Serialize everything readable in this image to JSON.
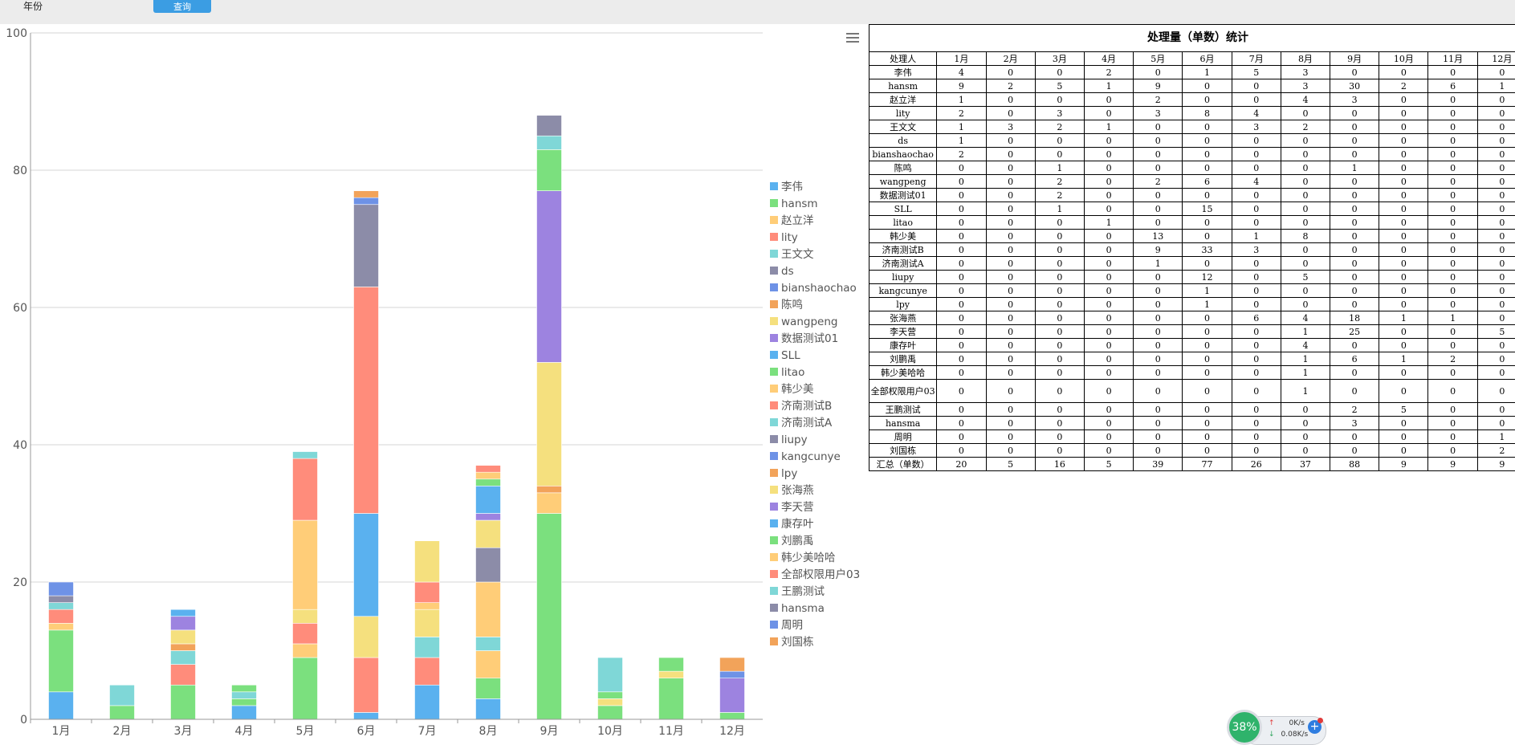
{
  "toolbar": {
    "year_label": "年份",
    "query_label": "查询"
  },
  "colors": [
    "#5ab1ef",
    "#7be07e",
    "#ffcd78",
    "#ff8c7b",
    "#7fd7d7",
    "#8c8ca8",
    "#6e92e6",
    "#f2a35a",
    "#f5e07e",
    "#9d83e0"
  ],
  "chart_data": {
    "type": "bar",
    "stacked": true,
    "categories": [
      "1月",
      "2月",
      "3月",
      "4月",
      "5月",
      "6月",
      "7月",
      "8月",
      "9月",
      "10月",
      "11月",
      "12月"
    ],
    "ylim": [
      0,
      100
    ],
    "yticks": [
      0,
      20,
      40,
      60,
      80,
      100
    ],
    "grid": true,
    "legend_position": "right",
    "series": [
      {
        "name": "李伟",
        "values": [
          4,
          0,
          0,
          2,
          0,
          1,
          5,
          3,
          0,
          0,
          0,
          0
        ]
      },
      {
        "name": "hansm",
        "values": [
          9,
          2,
          5,
          1,
          9,
          0,
          0,
          3,
          30,
          2,
          6,
          1
        ]
      },
      {
        "name": "赵立洋",
        "values": [
          1,
          0,
          0,
          0,
          2,
          0,
          0,
          4,
          3,
          0,
          0,
          0
        ]
      },
      {
        "name": "lity",
        "values": [
          2,
          0,
          3,
          0,
          3,
          8,
          4,
          0,
          0,
          0,
          0,
          0
        ]
      },
      {
        "name": "王文文",
        "values": [
          1,
          3,
          2,
          1,
          0,
          0,
          3,
          2,
          0,
          0,
          0,
          0
        ]
      },
      {
        "name": "ds",
        "values": [
          1,
          0,
          0,
          0,
          0,
          0,
          0,
          0,
          0,
          0,
          0,
          0
        ]
      },
      {
        "name": "bianshaochao",
        "values": [
          2,
          0,
          0,
          0,
          0,
          0,
          0,
          0,
          0,
          0,
          0,
          0
        ]
      },
      {
        "name": "陈鸣",
        "values": [
          0,
          0,
          1,
          0,
          0,
          0,
          0,
          0,
          1,
          0,
          0,
          0
        ]
      },
      {
        "name": "wangpeng",
        "values": [
          0,
          0,
          2,
          0,
          2,
          6,
          4,
          0,
          0,
          0,
          0,
          0
        ]
      },
      {
        "name": "数据测试01",
        "values": [
          0,
          0,
          2,
          0,
          0,
          0,
          0,
          0,
          0,
          0,
          0,
          0
        ]
      },
      {
        "name": "SLL",
        "values": [
          0,
          0,
          1,
          0,
          0,
          15,
          0,
          0,
          0,
          0,
          0,
          0
        ]
      },
      {
        "name": "litao",
        "values": [
          0,
          0,
          0,
          1,
          0,
          0,
          0,
          0,
          0,
          0,
          0,
          0
        ]
      },
      {
        "name": "韩少美",
        "values": [
          0,
          0,
          0,
          0,
          13,
          0,
          1,
          8,
          0,
          0,
          0,
          0
        ]
      },
      {
        "name": "济南测试B",
        "values": [
          0,
          0,
          0,
          0,
          9,
          33,
          3,
          0,
          0,
          0,
          0,
          0
        ]
      },
      {
        "name": "济南测试A",
        "values": [
          0,
          0,
          0,
          0,
          1,
          0,
          0,
          0,
          0,
          0,
          0,
          0
        ]
      },
      {
        "name": "liupy",
        "values": [
          0,
          0,
          0,
          0,
          0,
          12,
          0,
          5,
          0,
          0,
          0,
          0
        ]
      },
      {
        "name": "kangcunye",
        "values": [
          0,
          0,
          0,
          0,
          0,
          1,
          0,
          0,
          0,
          0,
          0,
          0
        ]
      },
      {
        "name": "lpy",
        "values": [
          0,
          0,
          0,
          0,
          0,
          1,
          0,
          0,
          0,
          0,
          0,
          0
        ]
      },
      {
        "name": "张海燕",
        "values": [
          0,
          0,
          0,
          0,
          0,
          0,
          6,
          4,
          18,
          1,
          1,
          0
        ]
      },
      {
        "name": "李天营",
        "values": [
          0,
          0,
          0,
          0,
          0,
          0,
          0,
          1,
          25,
          0,
          0,
          5
        ]
      },
      {
        "name": "康存叶",
        "values": [
          0,
          0,
          0,
          0,
          0,
          0,
          0,
          4,
          0,
          0,
          0,
          0
        ]
      },
      {
        "name": "刘鹏禹",
        "values": [
          0,
          0,
          0,
          0,
          0,
          0,
          0,
          1,
          6,
          1,
          2,
          0
        ]
      },
      {
        "name": "韩少美哈哈",
        "values": [
          0,
          0,
          0,
          0,
          0,
          0,
          0,
          1,
          0,
          0,
          0,
          0
        ]
      },
      {
        "name": "全部权限用户03",
        "values": [
          0,
          0,
          0,
          0,
          0,
          0,
          0,
          1,
          0,
          0,
          0,
          0
        ]
      },
      {
        "name": "王鹏测试",
        "values": [
          0,
          0,
          0,
          0,
          0,
          0,
          0,
          0,
          2,
          5,
          0,
          0
        ]
      },
      {
        "name": "hansma",
        "values": [
          0,
          0,
          0,
          0,
          0,
          0,
          0,
          0,
          3,
          0,
          0,
          0
        ]
      },
      {
        "name": "周明",
        "values": [
          0,
          0,
          0,
          0,
          0,
          0,
          0,
          0,
          0,
          0,
          0,
          1
        ]
      },
      {
        "name": "刘国栋",
        "values": [
          0,
          0,
          0,
          0,
          0,
          0,
          0,
          0,
          0,
          0,
          0,
          2
        ]
      }
    ]
  },
  "table": {
    "title": "处理量（单数）统计",
    "header_first": "处理人",
    "months": [
      "1月",
      "2月",
      "3月",
      "4月",
      "5月",
      "6月",
      "7月",
      "8月",
      "9月",
      "10月",
      "11月",
      "12月"
    ],
    "total_label": "汇总（单数）",
    "totals": [
      20,
      5,
      16,
      5,
      39,
      77,
      26,
      37,
      88,
      9,
      9,
      9
    ]
  },
  "net": {
    "percent": "38%",
    "up": "0K/s",
    "down": "0.08K/s"
  }
}
